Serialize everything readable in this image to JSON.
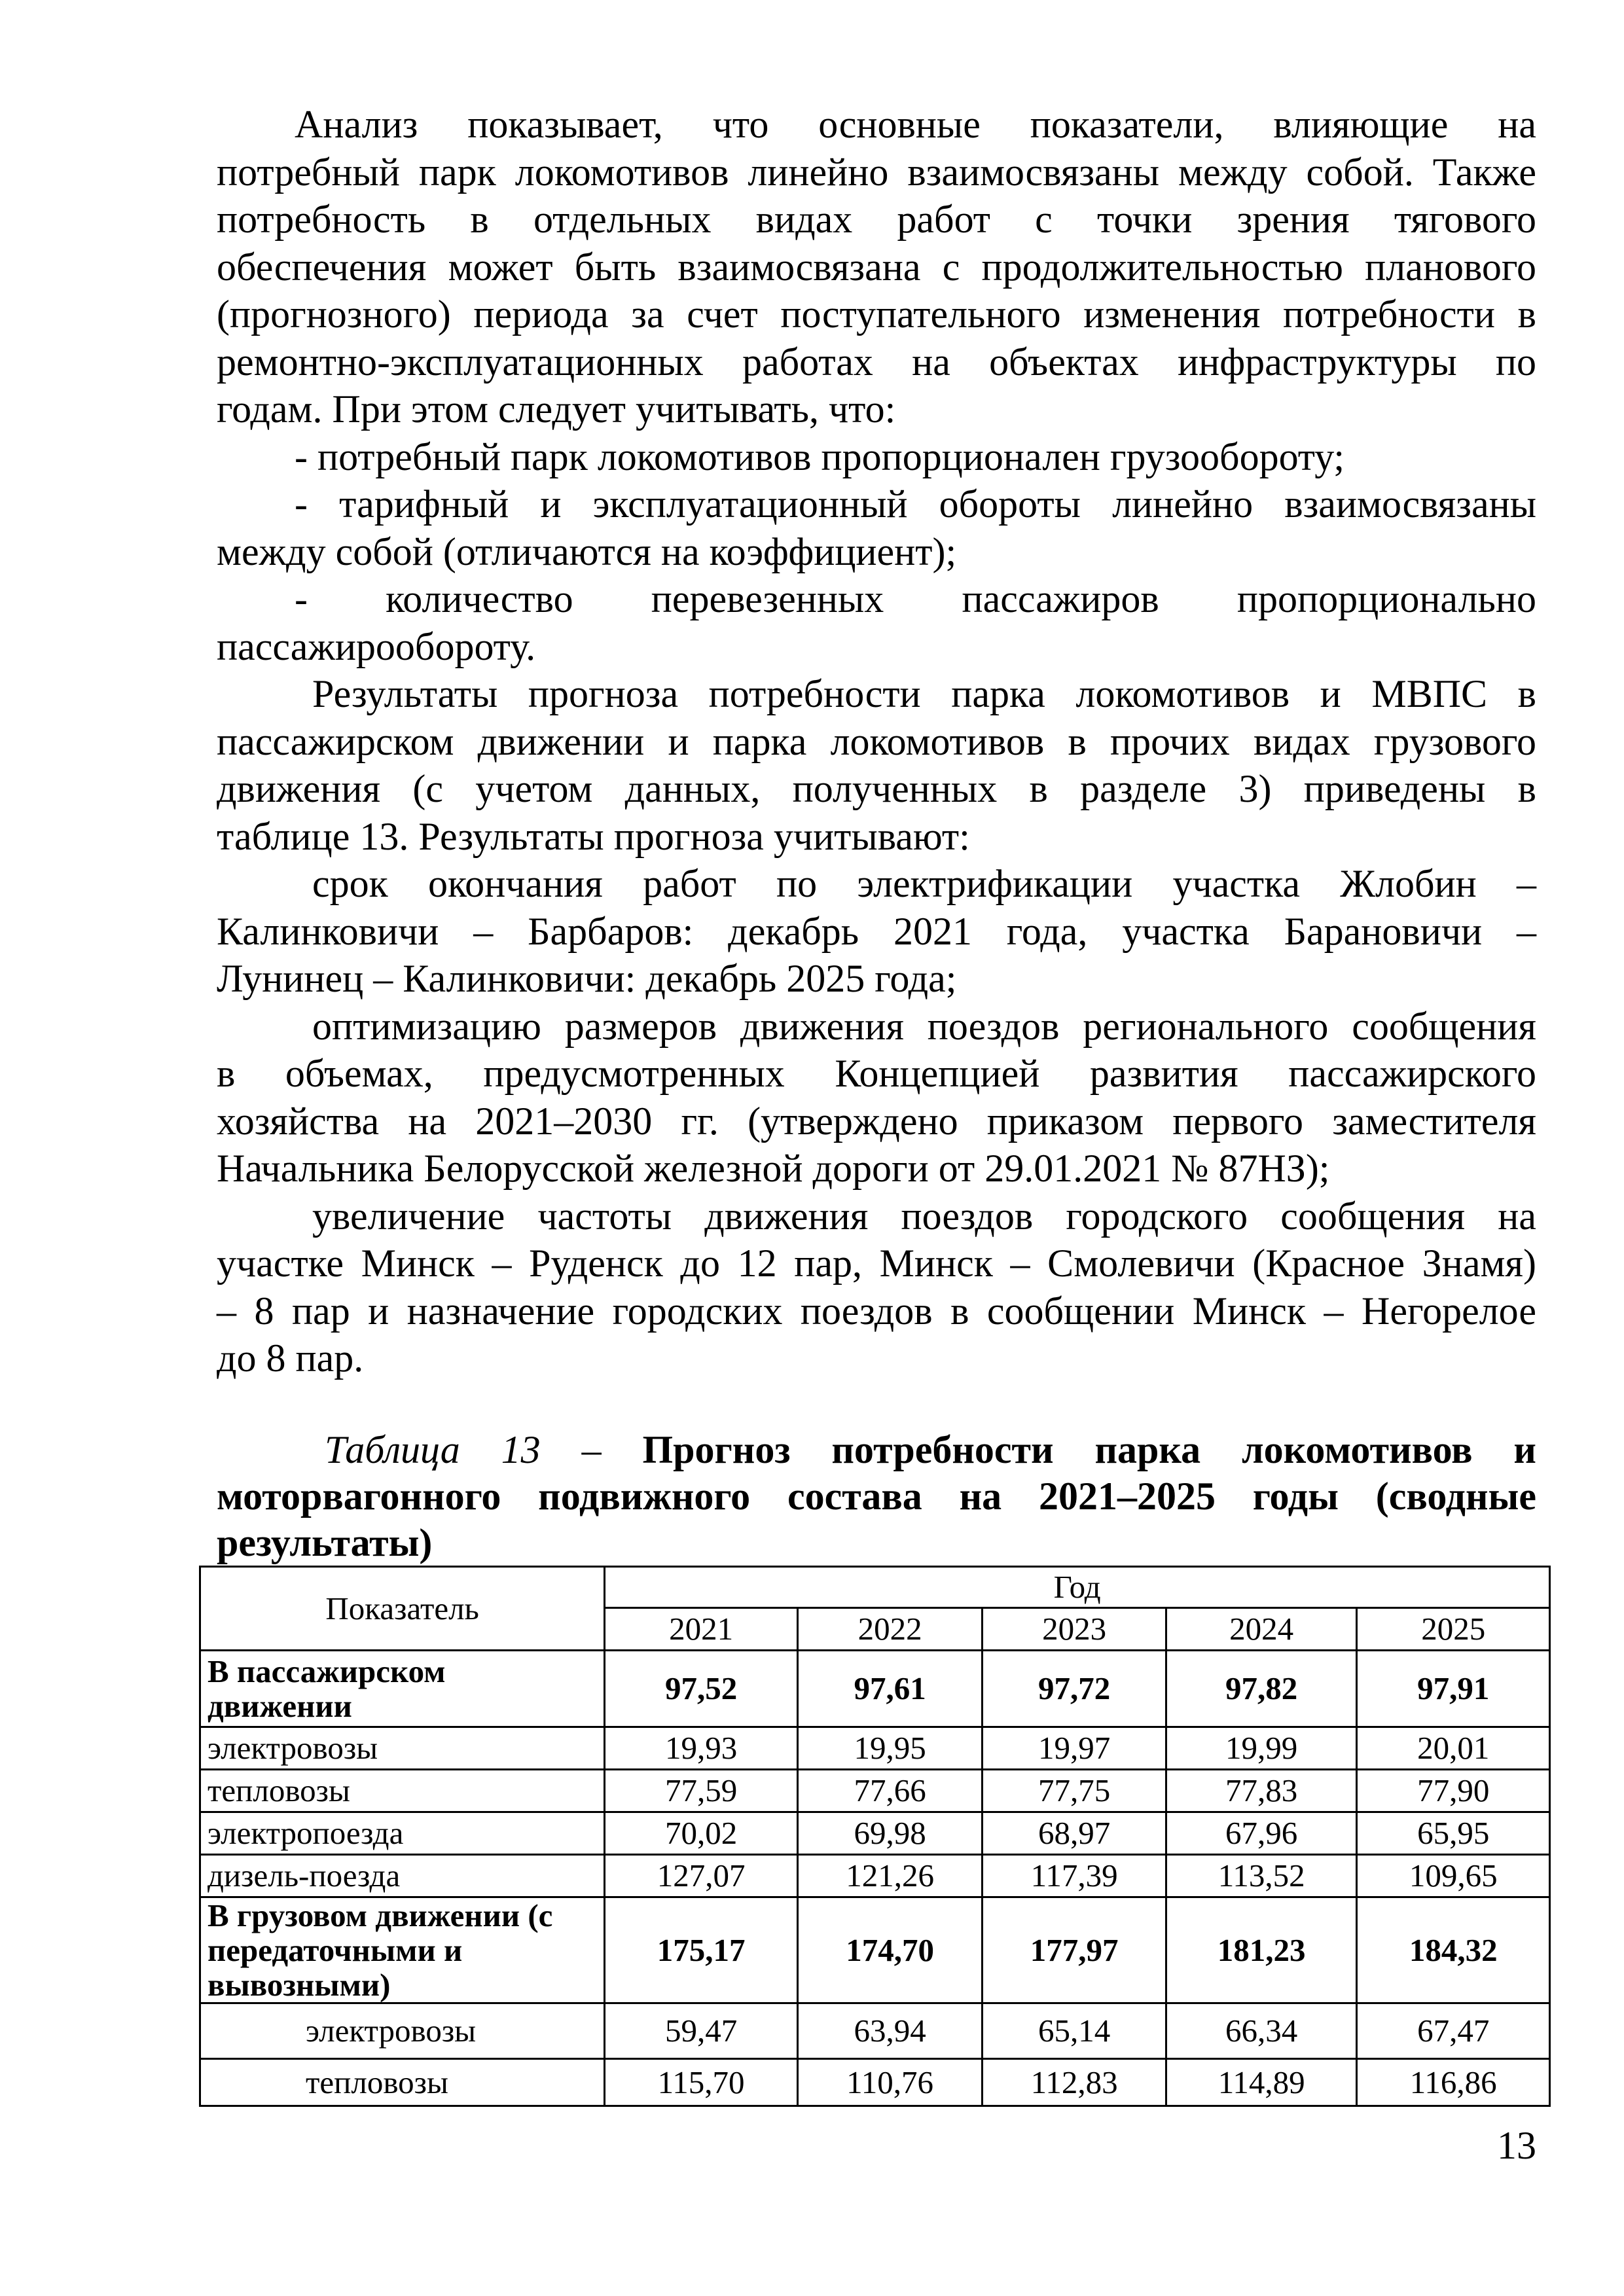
{
  "paragraphs": [
    {
      "indent": "i1",
      "lines": [
        "Анализ показывает, что основные показатели, влияющие на",
        "потребный парк локомотивов линейно взаимосвязаны между собой. Также",
        "потребность в отдельных видах работ с точки зрения тягового",
        "обеспечения может быть взаимосвязана с продолжительностью планового",
        "(прогнозного) периода за счет поступательного изменения потребности в",
        "ремонтно-эксплуатационных работах на объектах инфраструктуры по",
        "годам. При этом следует учитывать, что:"
      ]
    },
    {
      "indent": "i1",
      "lines": [
        "- потребный парк локомотивов пропорционален грузообороту;"
      ]
    },
    {
      "indent": "i1",
      "lines": [
        "- тарифный и эксплуатационный обороты линейно взаимосвязаны",
        "между собой (отличаются на коэффициент);"
      ]
    },
    {
      "indent": "i1",
      "lines": [
        "- количество перевезенных пассажиров пропорционально",
        "пассажирообороту."
      ]
    },
    {
      "indent": "i2",
      "lines": [
        "Результаты прогноза потребности парка локомотивов и МВПС в",
        "пассажирском движении и парка локомотивов в прочих видах грузового",
        "движения (с учетом данных, полученных в разделе 3) приведены в",
        "таблице 13. Результаты прогноза  учитывают:"
      ]
    },
    {
      "indent": "i2",
      "lines": [
        "срок окончания работ по электрификации участка Жлобин –",
        "Калинковичи – Барбаров: декабрь 2021 года, участка Барановичи –",
        "Лунинец – Калинковичи: декабрь 2025 года;"
      ]
    },
    {
      "indent": "i2",
      "lines": [
        "оптимизацию размеров движения поездов регионального сообщения",
        "в объемах, предусмотренных Концепцией развития пассажирского",
        "хозяйства на 2021–2030 гг. (утверждено приказом первого заместителя",
        "Начальника Белорусской железной дороги от 29.01.2021 № 87НЗ);"
      ]
    },
    {
      "indent": "i2",
      "lines": [
        "увеличение частоты движения поездов городского сообщения на",
        "участке Минск – Руденск до 12 пар, Минск – Смолевичи (Красное Знамя)",
        "– 8 пар и назначение городских поездов в сообщении Минск – Негорелое",
        "до 8 пар."
      ]
    }
  ],
  "caption": {
    "label": "Таблица 13 – ",
    "title_lines": [
      "Прогноз потребности парка локомотивов и",
      "моторвагонного подвижного состава на 2021–2025 годы (сводные",
      "результаты)"
    ]
  },
  "table": {
    "col_header": "Показатель",
    "group_header": "Год",
    "years": [
      "2021",
      "2022",
      "2023",
      "2024",
      "2025"
    ],
    "rows": [
      {
        "label": "В пассажирском движении",
        "bold": true,
        "sub": false,
        "values": [
          "97,52",
          "97,61",
          "97,72",
          "97,82",
          "97,91"
        ]
      },
      {
        "label": "электровозы",
        "bold": false,
        "sub": false,
        "values": [
          "19,93",
          "19,95",
          "19,97",
          "19,99",
          "20,01"
        ]
      },
      {
        "label": "тепловозы",
        "bold": false,
        "sub": false,
        "values": [
          "77,59",
          "77,66",
          "77,75",
          "77,83",
          "77,90"
        ]
      },
      {
        "label": "электропоезда",
        "bold": false,
        "sub": false,
        "values": [
          "70,02",
          "69,98",
          "68,97",
          "67,96",
          "65,95"
        ]
      },
      {
        "label": "дизель-поезда",
        "bold": false,
        "sub": false,
        "values": [
          "127,07",
          "121,26",
          "117,39",
          "113,52",
          "109,65"
        ]
      },
      {
        "label": "В грузовом движении (с передаточными и вывозными)",
        "bold": true,
        "sub": false,
        "values": [
          "175,17",
          "174,70",
          "177,97",
          "181,23",
          "184,32"
        ]
      },
      {
        "label": "электровозы",
        "bold": false,
        "sub": true,
        "values": [
          "59,47",
          "63,94",
          "65,14",
          "66,34",
          "67,47"
        ]
      },
      {
        "label": "тепловозы",
        "bold": false,
        "sub": true,
        "values": [
          "115,70",
          "110,76",
          "112,83",
          "114,89",
          "116,86"
        ]
      }
    ]
  },
  "page_number": "13"
}
